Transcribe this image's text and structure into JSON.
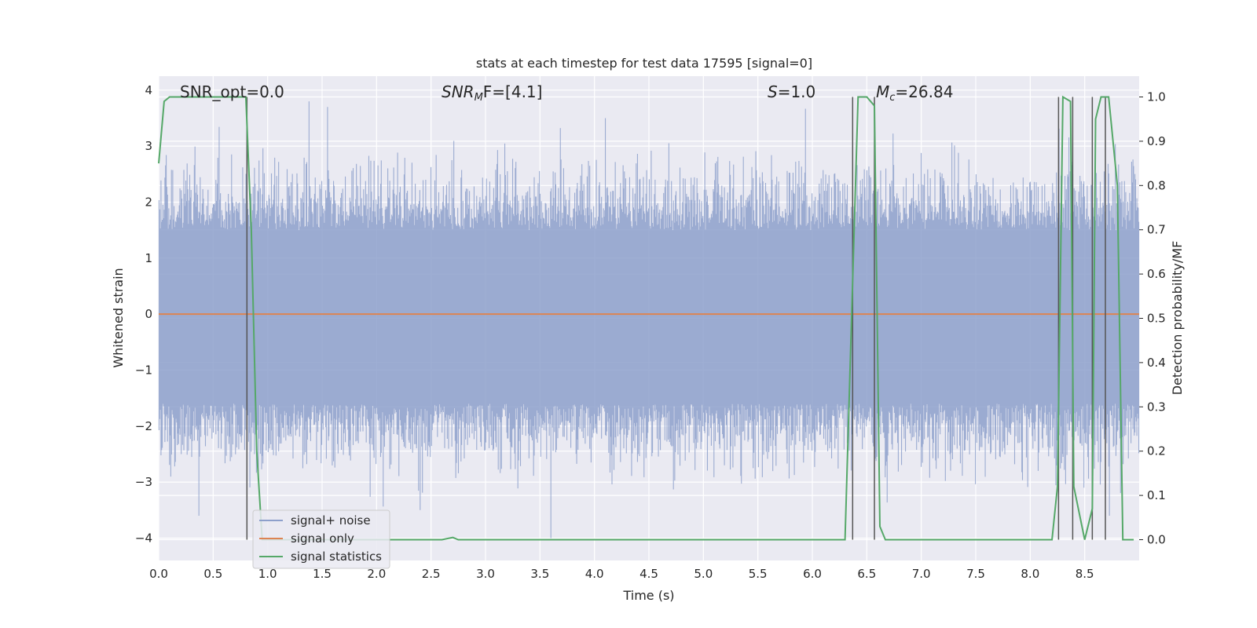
{
  "chart_data": {
    "type": "line",
    "title": "stats at each timestep for test data 17595 [signal=0]",
    "xlabel": "Time (s)",
    "ylabel": "Whitened strain",
    "ylabel_right": "Detection probability/MF",
    "xlim": [
      0.0,
      9.0
    ],
    "ylim": [
      -4.4,
      4.25
    ],
    "ylim_right": [
      -0.047,
      1.047
    ],
    "x_ticks": [
      "0.0",
      "0.5",
      "1.0",
      "1.5",
      "2.0",
      "2.5",
      "3.0",
      "3.5",
      "4.0",
      "4.5",
      "5.0",
      "5.5",
      "6.0",
      "6.5",
      "7.0",
      "7.5",
      "8.0",
      "8.5"
    ],
    "y_ticks": [
      "−4",
      "−3",
      "−2",
      "−1",
      "0",
      "1",
      "2",
      "3",
      "4"
    ],
    "y_ticks_right": [
      "0.0",
      "0.1",
      "0.2",
      "0.3",
      "0.4",
      "0.5",
      "0.6",
      "0.7",
      "0.8",
      "0.9",
      "1.0"
    ],
    "grid": true,
    "legend_placement": "lower-left",
    "annotations": {
      "snr_opt": "SNR_opt=0.0",
      "snr_mf_main": "SNR",
      "snr_mf_sub": "M",
      "snr_mf_rest": "F=[4.1]",
      "s_main": "S",
      "s_rest": "=1.0",
      "mc_main": "M",
      "mc_sub": "c",
      "mc_rest": "=26.84"
    },
    "series": [
      {
        "name": "signal+ noise",
        "color": "#8da0cb",
        "description_values": "whitened noise time series, amplitude roughly within ±3.5, extremes near −4.0 at t≈3.6 and +3.8 at t≈1.4"
      },
      {
        "name": "signal only",
        "color": "#dd8452",
        "x": [
          0.0,
          9.0
        ],
        "y": [
          0.0,
          0.0
        ]
      },
      {
        "name": "signal statistics",
        "color": "#55a868",
        "axis": "right",
        "x": [
          0.0,
          0.05,
          0.1,
          0.78,
          0.8,
          0.85,
          0.9,
          0.95,
          1.0,
          2.6,
          2.7,
          2.75,
          6.05,
          6.3,
          6.42,
          6.5,
          6.57,
          6.62,
          6.67,
          8.2,
          8.25,
          8.3,
          8.37,
          8.4,
          8.5,
          8.57,
          8.6,
          8.65,
          8.72,
          8.8,
          8.85,
          8.95
        ],
        "y": [
          0.85,
          0.99,
          1.0,
          1.0,
          1.0,
          0.7,
          0.2,
          0.0,
          0.0,
          0.0,
          0.005,
          0.0,
          0.0,
          0.0,
          1.0,
          1.0,
          0.98,
          0.03,
          0.0,
          0.0,
          0.12,
          1.0,
          0.99,
          0.12,
          0.0,
          0.07,
          0.95,
          1.0,
          1.0,
          0.8,
          0.0,
          0.0
        ]
      }
    ],
    "vertical_lines_x": [
      0.81,
      6.37,
      6.57,
      8.26,
      8.39,
      8.57,
      8.69
    ]
  }
}
